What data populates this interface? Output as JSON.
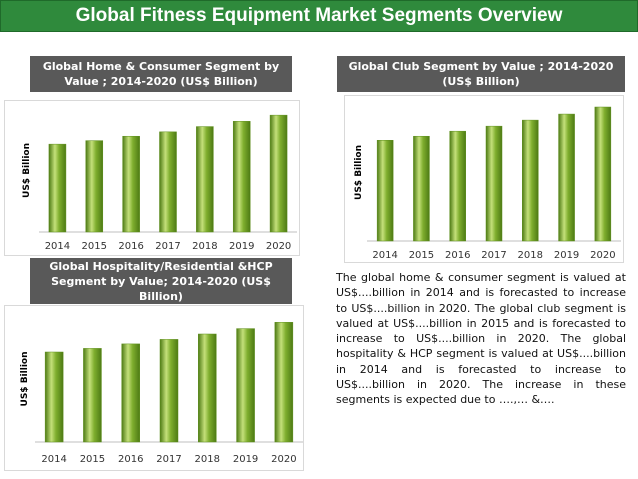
{
  "title": "Global Fitness Equipment  Market Segments Overview",
  "colors": {
    "title_bg": "#2f8a3c",
    "header_bg": "#595959",
    "bar_light": "#c4e07a",
    "bar_mid": "#7fae2e",
    "bar_dark": "#4d7a14"
  },
  "chart_data": [
    {
      "type": "bar",
      "title": "Global Home & Consumer Segment by Value ; 2014-2020 (US$ Billion)",
      "categories": [
        "2014",
        "2015",
        "2016",
        "2017",
        "2018",
        "2019",
        "2020"
      ],
      "values": [
        100,
        104,
        109,
        114,
        120,
        126,
        133
      ],
      "ylabel": "US$ Billion",
      "ylim": [
        0,
        140
      ],
      "grid": false
    },
    {
      "type": "bar",
      "title": "Global Club Segment by Value ; 2014-2020 (US$ Billion)",
      "categories": [
        "2014",
        "2015",
        "2016",
        "2017",
        "2018",
        "2019",
        "2020"
      ],
      "values": [
        100,
        104,
        109,
        114,
        120,
        126,
        133
      ],
      "ylabel": "US$ Billion",
      "ylim": [
        0,
        136
      ],
      "grid": false
    },
    {
      "type": "bar",
      "title": "Global Hospitality/Residential &HCP Segment by Value; 2014-2020 (US$ Billion)",
      "categories": [
        "2014",
        "2015",
        "2016",
        "2017",
        "2018",
        "2019",
        "2020"
      ],
      "values": [
        100,
        104,
        109,
        114,
        120,
        126,
        133
      ],
      "ylabel": "US$ Billion",
      "ylim": [
        0,
        140
      ],
      "grid": false
    }
  ],
  "paragraph": "The global home & consumer segment is valued at US$....billion in 2014 and is forecasted to increase to US$....billion in 2020. The global club segment is valued at US$....billion in 2015 and is forecasted to increase to US$....billion in 2020. The global hospitality & HCP segment is valued at US$....billion in 2014 and is forecasted to increase to US$....billion in 2020. The increase in these segments is expected due to ….,… &…."
}
